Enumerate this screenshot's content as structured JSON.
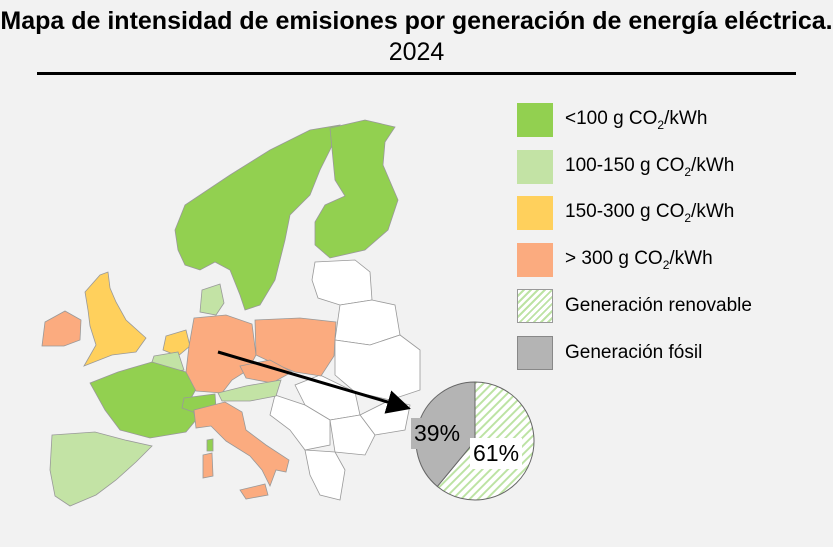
{
  "title": {
    "main": "Mapa de intensidad de emisiones por generación de energía eléctrica.",
    "year": "2024"
  },
  "legend": [
    {
      "label": "<100 g CO",
      "sub": "2",
      "unit": "/kWh",
      "color": "#92d050"
    },
    {
      "label": "100-150 g CO",
      "sub": "2",
      "unit": "/kWh",
      "color": "#c3e3a5"
    },
    {
      "label": "150-300 g CO",
      "sub": "2",
      "unit": "/kWh",
      "color": "#ffd05c"
    },
    {
      "label": "> 300 g CO",
      "sub": "2",
      "unit": "/kWh",
      "color": "#fbab7f"
    },
    {
      "label": "Generación renovable",
      "pattern": "hatch"
    },
    {
      "label": "Generación fósil",
      "color": "#b4b4b4"
    }
  ],
  "pie": {
    "slices": [
      {
        "name": "Generación fósil",
        "value": 39,
        "label": "39%",
        "color": "#b4b4b4"
      },
      {
        "name": "Generación renovable",
        "value": 61,
        "label": "61%",
        "color": "hatch"
      }
    ],
    "linked_country": "Germany"
  },
  "countries": [
    {
      "name": "Norway-Sweden",
      "category": "<100"
    },
    {
      "name": "Finland",
      "category": "<100"
    },
    {
      "name": "France",
      "category": "<100"
    },
    {
      "name": "Switzerland",
      "category": "<100"
    },
    {
      "name": "Denmark",
      "category": "100-150"
    },
    {
      "name": "Belgium",
      "category": "100-150"
    },
    {
      "name": "Austria",
      "category": "100-150"
    },
    {
      "name": "Spain-Portugal",
      "category": "100-150"
    },
    {
      "name": "United Kingdom",
      "category": "150-300"
    },
    {
      "name": "Netherlands",
      "category": "150-300"
    },
    {
      "name": "Ireland",
      "category": ">300"
    },
    {
      "name": "Germany",
      "category": ">300"
    },
    {
      "name": "Poland",
      "category": ">300"
    },
    {
      "name": "Czechia",
      "category": ">300"
    },
    {
      "name": "Italy",
      "category": ">300"
    }
  ]
}
